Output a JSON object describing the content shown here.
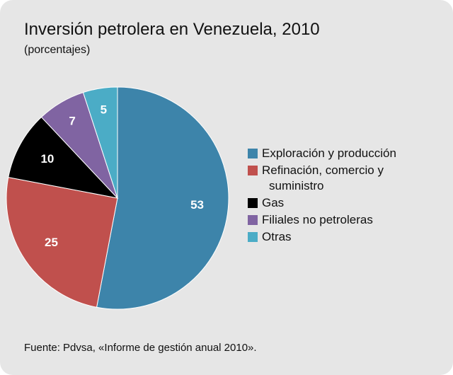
{
  "chart_data": {
    "type": "pie",
    "title": "Inversión petrolera en Venezuela, 2010",
    "subtitle": "(porcentajes)",
    "source": "Fuente: Pdvsa, «Informe de gestión anual 2010».",
    "categories": [
      "Exploración y producción",
      "Refinación, comercio y suministro",
      "Gas",
      "Filiales no petroleras",
      "Otras"
    ],
    "values": [
      53,
      25,
      10,
      7,
      5
    ],
    "colors": [
      "#3d84aa",
      "#c0504d",
      "#000000",
      "#8064a2",
      "#4bacc6"
    ],
    "legend": "right"
  }
}
